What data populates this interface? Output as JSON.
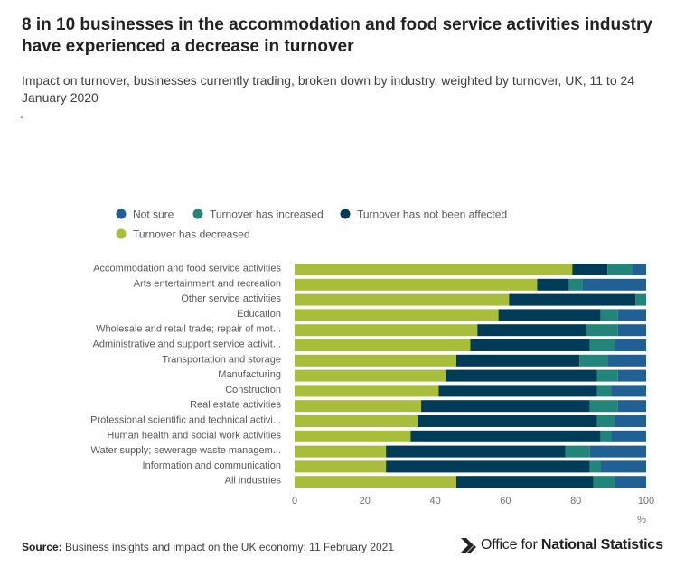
{
  "title": "8 in 10 businesses in the accommodation and food service activities industry have experienced a decrease in turnover",
  "subtitle": "Impact on turnover, businesses currently trading, broken down by industry, weighted by turnover, UK, 11 to 24 January 2020",
  "note_mark": ".",
  "footer": {
    "source_label": "Source:",
    "source_text": "Business insights and impact on the UK economy: 11 February 2021",
    "logo_text_light": "Office for",
    "logo_text_bold": "National Statistics"
  },
  "colors": {
    "not_sure": "#206095",
    "increased": "#22857a",
    "not_affected": "#003c57",
    "decreased": "#a8bd3a"
  },
  "chart_data": {
    "type": "bar",
    "orientation": "horizontal",
    "stacked": true,
    "categories": [
      "Accommodation and food service activities",
      "Arts entertainment and recreation",
      "Other service activities",
      "Education",
      "Wholesale and retail trade; repair of mot...",
      "Administrative and support service activit...",
      "Transportation and storage",
      "Manufacturing",
      "Construction",
      "Real estate activities",
      "Professional scientific and technical activi...",
      "Human health and social work activities",
      "Water supply; sewerage waste managem...",
      "Information and communication",
      "All industries"
    ],
    "series": [
      {
        "name": "Turnover has decreased",
        "color": "#a8bd3a",
        "values": [
          79,
          69,
          61,
          58,
          52,
          50,
          46,
          43,
          41,
          36,
          35,
          33,
          26,
          26,
          46
        ]
      },
      {
        "name": "Turnover has not been affected",
        "color": "#003c57",
        "values": [
          10,
          9,
          36,
          29,
          31,
          34,
          35,
          43,
          45,
          48,
          51,
          54,
          51,
          58,
          39
        ]
      },
      {
        "name": "Turnover has increased",
        "color": "#22857a",
        "values": [
          7,
          4,
          3,
          5,
          9,
          7,
          8,
          6,
          4,
          8,
          5,
          3,
          7,
          3,
          6
        ]
      },
      {
        "name": "Not sure",
        "color": "#206095",
        "values": [
          4,
          18,
          0,
          8,
          8,
          9,
          11,
          8,
          10,
          8,
          9,
          10,
          16,
          13,
          9
        ]
      }
    ],
    "legend": {
      "placement": "top-left",
      "items": [
        "Not sure",
        "Turnover has increased",
        "Turnover has not been affected",
        "Turnover has decreased"
      ],
      "colors": [
        "#206095",
        "#22857a",
        "#003c57",
        "#a8bd3a"
      ]
    },
    "x_ticks": [
      "0",
      "20",
      "40",
      "60",
      "80",
      "100"
    ],
    "xlabel": "%",
    "xlim": [
      0,
      100
    ],
    "grid": false
  }
}
